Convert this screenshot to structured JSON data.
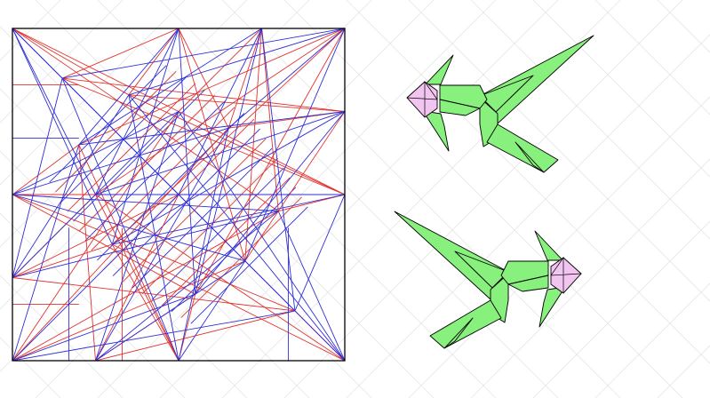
{
  "colors": {
    "background": "#ffffff",
    "grid": "#e6e6e6",
    "border": "#000000",
    "mountain": "#e0342f",
    "valley": "#2f2fd6",
    "model_body": "#88f07c",
    "model_outline": "#000000",
    "model_accent": "#f2c4f0"
  },
  "icons": {
    "crease_pattern": "crease-pattern-diagram",
    "folded_model_top": "folded-model-preview-icon",
    "folded_model_bottom": "folded-model-preview-mirrored-icon"
  }
}
